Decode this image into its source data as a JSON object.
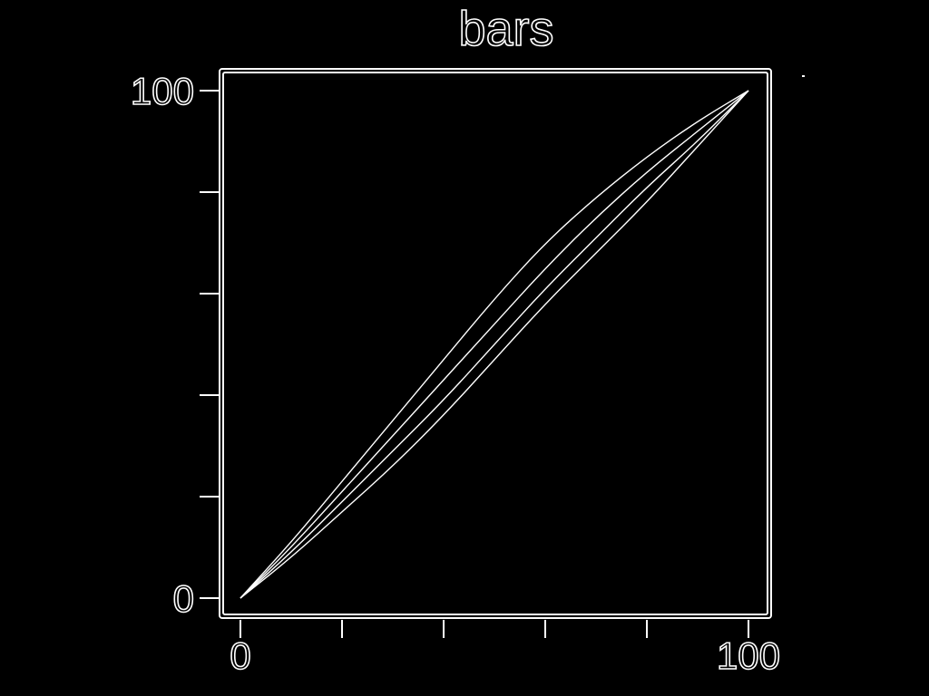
{
  "chart_data": {
    "type": "line",
    "title": "bars",
    "xlabel": "",
    "ylabel": "",
    "xlim": [
      0,
      100
    ],
    "ylim": [
      0,
      100
    ],
    "x_ticks": [
      0,
      20,
      40,
      60,
      80,
      100
    ],
    "y_ticks": [
      0,
      20,
      40,
      60,
      80,
      100
    ],
    "x_tick_labels": [
      "0",
      "",
      "",
      "",
      "",
      "100"
    ],
    "y_tick_labels": [
      "0",
      "",
      "",
      "",
      "",
      "100"
    ],
    "grid": false,
    "legend": "none",
    "series": [
      {
        "x": [
          0,
          10,
          20,
          30,
          40,
          50,
          60,
          70,
          80,
          90,
          100
        ],
        "y": [
          0,
          11,
          23,
          35,
          47,
          59,
          70,
          79,
          87,
          94,
          100
        ]
      },
      {
        "x": [
          0,
          10,
          20,
          30,
          40,
          50,
          60,
          70,
          80,
          90,
          100
        ],
        "y": [
          0,
          8,
          17,
          26,
          36,
          47,
          58,
          68,
          78,
          89,
          100
        ]
      },
      {
        "x": [
          0,
          10,
          20,
          30,
          40,
          50,
          60,
          70,
          80,
          90,
          100
        ],
        "y": [
          0,
          10,
          21,
          32,
          43,
          54,
          65,
          75,
          84,
          92,
          100
        ]
      },
      {
        "x": [
          0,
          10,
          20,
          30,
          40,
          50,
          60,
          70,
          80,
          90,
          100
        ],
        "y": [
          0,
          9,
          19,
          29,
          39,
          50,
          61,
          71,
          81,
          90,
          100
        ]
      }
    ],
    "colors": {
      "background": "#000000",
      "ink": "#ffffff"
    }
  }
}
